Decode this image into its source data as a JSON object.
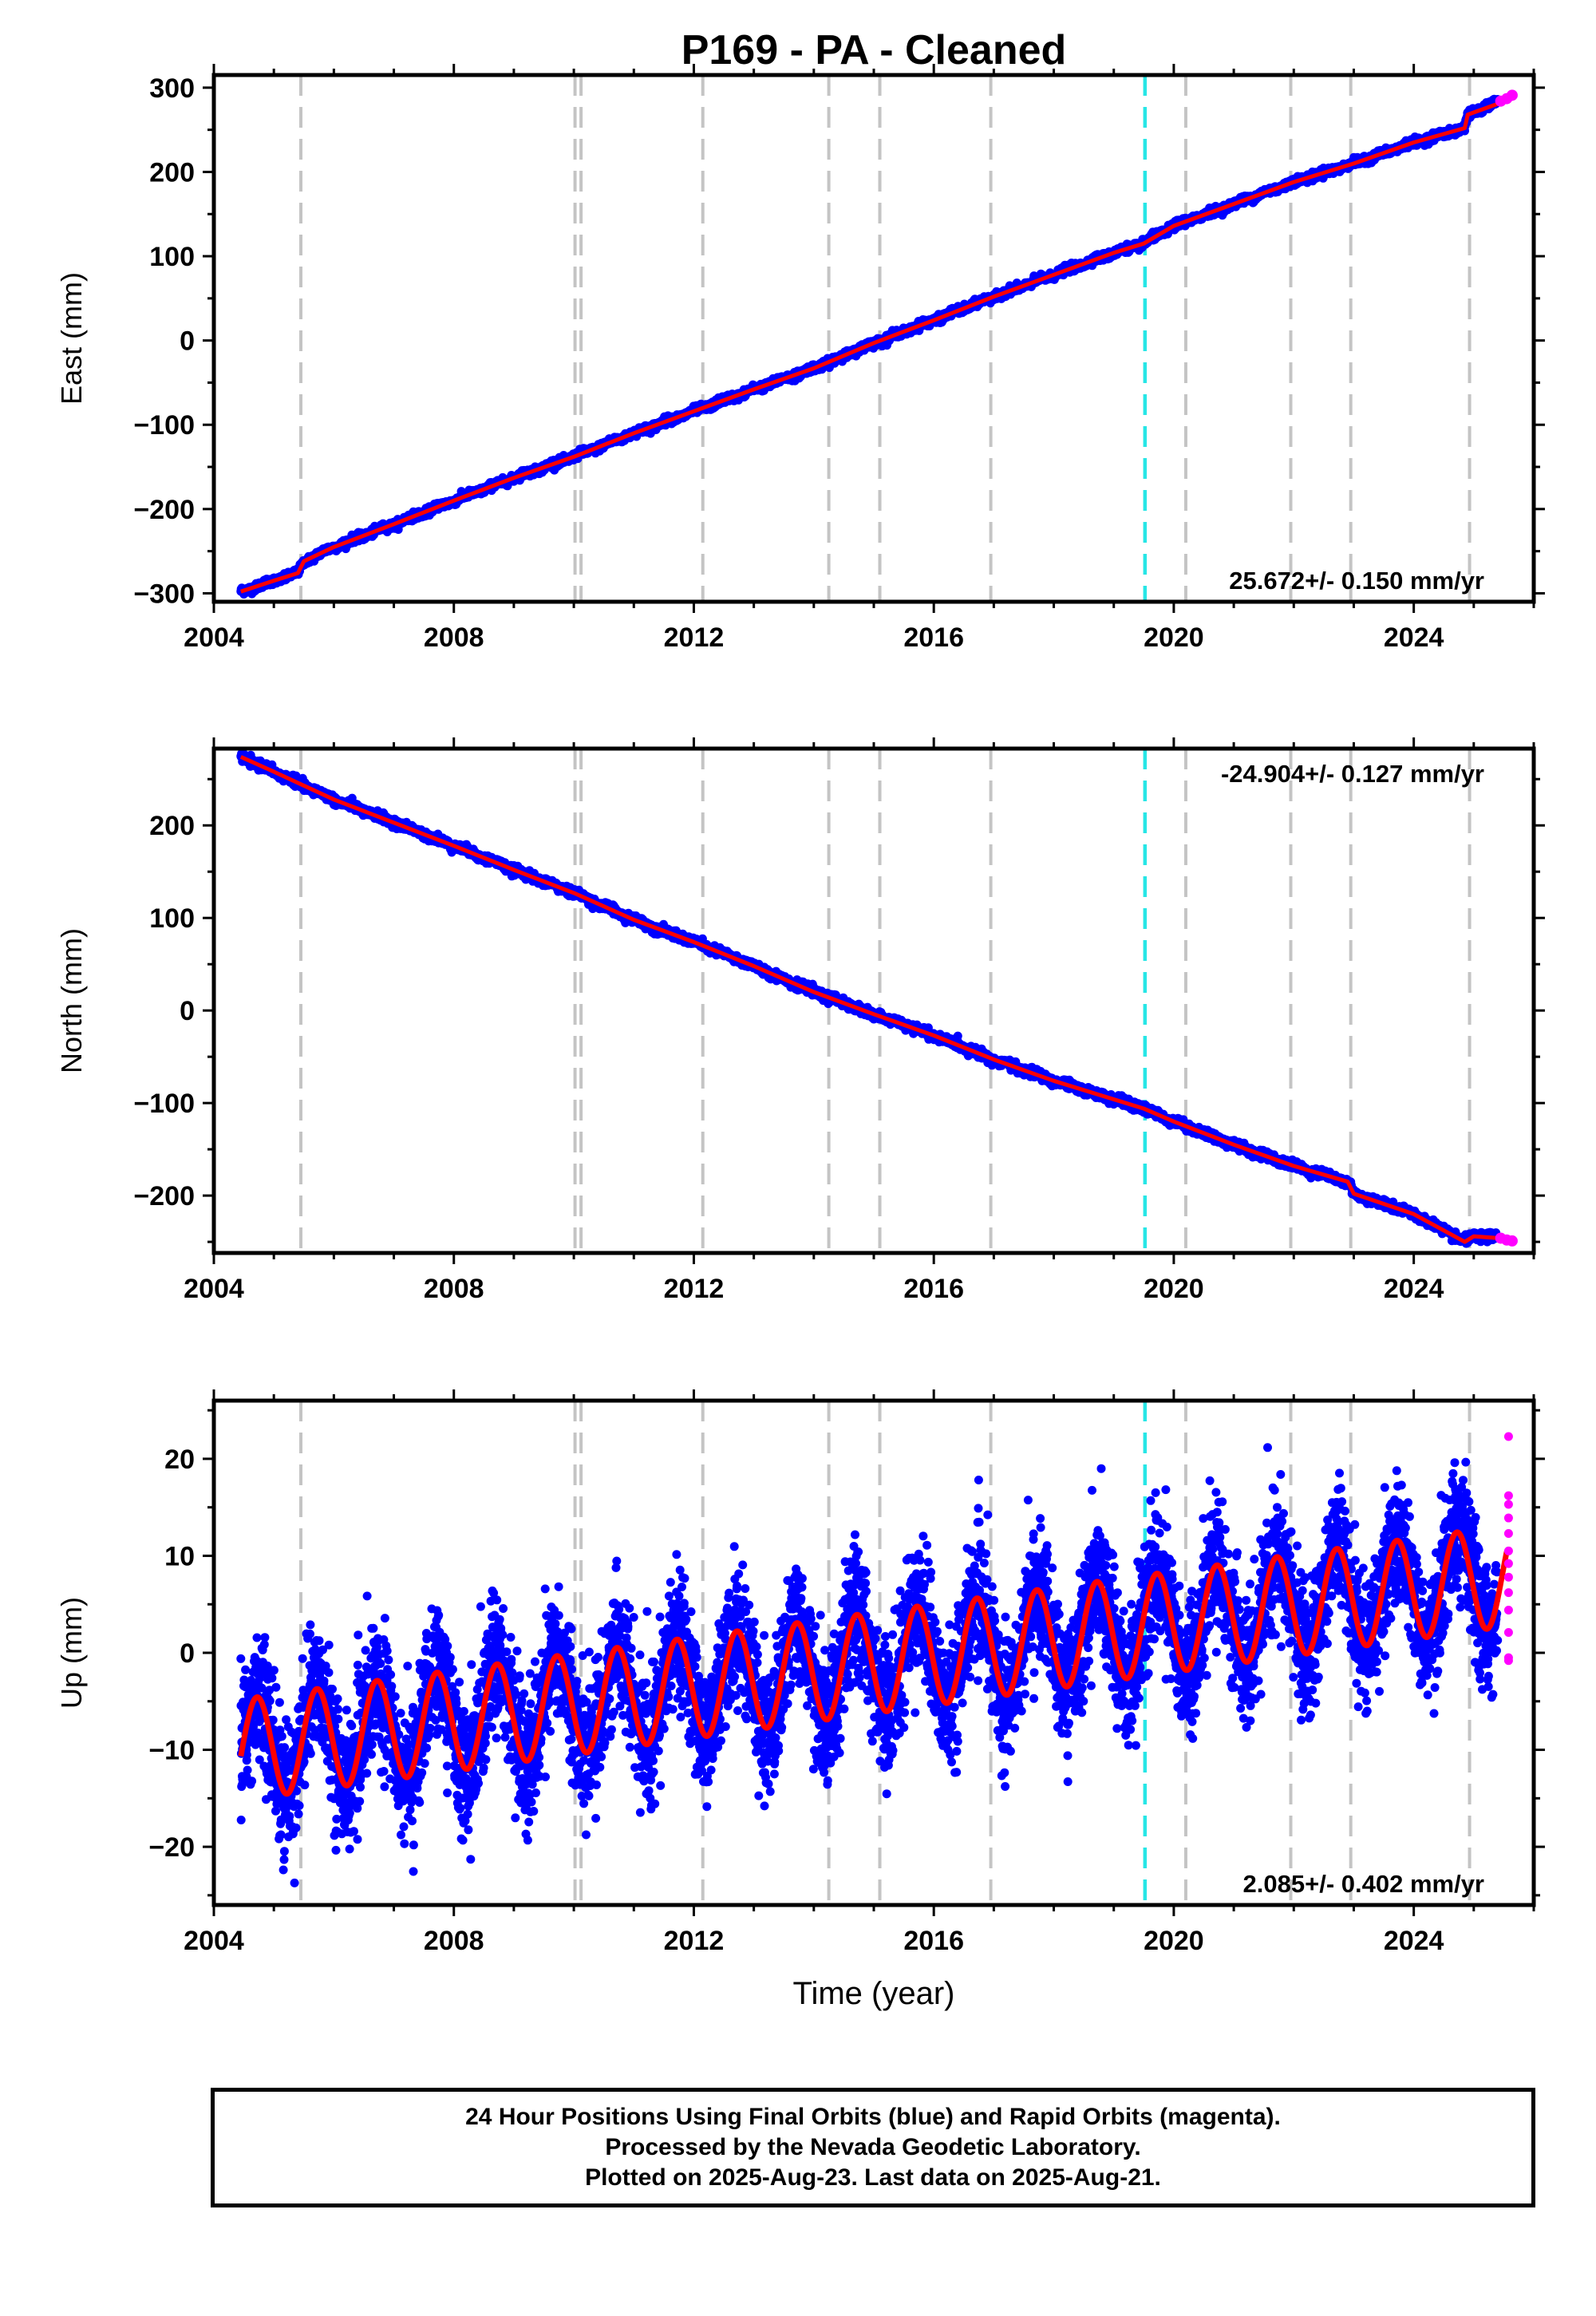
{
  "chart_data": [
    {
      "type": "scatter",
      "title": "P169  - PA - Cleaned",
      "ylabel": "East (mm)",
      "xlabel": "",
      "xlim": [
        2004.0,
        2026.0
      ],
      "ylim": [
        -310,
        315
      ],
      "xticks": [
        2004,
        2008,
        2012,
        2016,
        2020,
        2024
      ],
      "yticks": [
        -300,
        -200,
        -100,
        0,
        100,
        200,
        300
      ],
      "rate_text": "25.672+/- 0.150 mm/yr",
      "rate_position": "bottom-right",
      "grid": false,
      "series": [
        {
          "label": "Final Orbits",
          "color": "#0000ff",
          "x": [
            2004.45,
            2005.0,
            2005.4,
            2005.5,
            2006.0,
            2007.0,
            2008.0,
            2009.0,
            2010.0,
            2011.0,
            2012.0,
            2013.0,
            2014.0,
            2015.0,
            2016.0,
            2017.0,
            2018.0,
            2019.0,
            2019.5,
            2020.0,
            2021.0,
            2022.0,
            2023.0,
            2024.0,
            2024.85,
            2024.9,
            2025.4
          ],
          "y": [
            -298,
            -285,
            -276,
            -262,
            -245,
            -218,
            -190,
            -163,
            -138,
            -110,
            -84,
            -58,
            -33,
            -3,
            24,
            52,
            78,
            104,
            115,
            136,
            162,
            188,
            210,
            235,
            252,
            268,
            283
          ]
        },
        {
          "label": "Rapid Orbits",
          "color": "#ff00ff",
          "x": [
            2025.45,
            2025.55,
            2025.64
          ],
          "y": [
            284,
            287,
            291
          ]
        },
        {
          "label": "Model",
          "color": "#ff0000",
          "x": [
            2004.45,
            2005.0,
            2005.4,
            2005.5,
            2006.0,
            2007.0,
            2008.0,
            2009.0,
            2010.0,
            2011.0,
            2012.0,
            2013.0,
            2014.0,
            2015.0,
            2016.0,
            2017.0,
            2018.0,
            2019.0,
            2019.5,
            2020.0,
            2021.0,
            2022.0,
            2023.0,
            2024.0,
            2024.85,
            2024.9,
            2025.64
          ],
          "y": [
            -298,
            -285,
            -276,
            -262,
            -245,
            -218,
            -190,
            -163,
            -138,
            -110,
            -84,
            -58,
            -33,
            -3,
            24,
            52,
            78,
            104,
            115,
            136,
            162,
            188,
            210,
            235,
            252,
            268,
            287
          ]
        }
      ],
      "vlines_gray": [
        2005.45,
        2010.02,
        2010.12,
        2012.15,
        2014.25,
        2015.1,
        2016.95,
        2020.2,
        2021.95,
        2022.95,
        2024.93
      ],
      "vlines_cyan": [
        2019.52
      ]
    },
    {
      "type": "scatter",
      "ylabel": "North (mm)",
      "xlabel": "",
      "xlim": [
        2004.0,
        2026.0
      ],
      "ylim": [
        -262,
        283
      ],
      "xticks": [
        2004,
        2008,
        2012,
        2016,
        2020,
        2024
      ],
      "yticks": [
        -200,
        -100,
        0,
        100,
        200
      ],
      "rate_text": "-24.904+/- 0.127 mm/yr",
      "rate_position": "top-right",
      "grid": false,
      "series": [
        {
          "label": "Final Orbits",
          "color": "#0000ff",
          "x": [
            2004.45,
            2005.0,
            2006.0,
            2007.0,
            2008.0,
            2009.0,
            2010.0,
            2011.0,
            2012.0,
            2013.0,
            2014.0,
            2015.0,
            2016.0,
            2017.0,
            2018.0,
            2019.0,
            2019.5,
            2020.0,
            2021.0,
            2022.0,
            2022.9,
            2023.0,
            2024.0,
            2024.85,
            2025.0,
            2025.4
          ],
          "y": [
            274,
            258,
            228,
            203,
            178,
            152,
            127,
            98,
            74,
            48,
            20,
            -4,
            -27,
            -53,
            -76,
            -96,
            -106,
            -120,
            -145,
            -168,
            -185,
            -198,
            -220,
            -250,
            -244,
            -245
          ]
        },
        {
          "label": "Rapid Orbits",
          "color": "#ff00ff",
          "x": [
            2025.45,
            2025.55,
            2025.64
          ],
          "y": [
            -246,
            -248,
            -249
          ]
        },
        {
          "label": "Model",
          "color": "#ff0000",
          "x": [
            2004.45,
            2005.0,
            2006.0,
            2007.0,
            2008.0,
            2009.0,
            2010.0,
            2011.0,
            2012.0,
            2013.0,
            2014.0,
            2015.0,
            2016.0,
            2017.0,
            2018.0,
            2019.0,
            2019.5,
            2020.0,
            2021.0,
            2022.0,
            2022.9,
            2023.0,
            2024.0,
            2024.85,
            2025.0,
            2025.64
          ],
          "y": [
            274,
            258,
            228,
            203,
            178,
            152,
            127,
            98,
            74,
            48,
            20,
            -4,
            -27,
            -53,
            -76,
            -96,
            -106,
            -120,
            -145,
            -168,
            -185,
            -198,
            -220,
            -250,
            -244,
            -247
          ]
        }
      ],
      "vlines_gray": [
        2005.45,
        2010.02,
        2010.12,
        2012.15,
        2014.25,
        2015.1,
        2016.95,
        2020.2,
        2021.95,
        2022.95,
        2024.93
      ],
      "vlines_cyan": [
        2019.52
      ]
    },
    {
      "type": "scatter",
      "ylabel": "Up (mm)",
      "xlabel": "Time (year)",
      "xlim": [
        2004.0,
        2026.0
      ],
      "ylim": [
        -26,
        26
      ],
      "xticks": [
        2004,
        2008,
        2012,
        2016,
        2020,
        2024
      ],
      "yticks": [
        -20,
        -10,
        0,
        10,
        20
      ],
      "rate_text": "2.085+/- 0.402 mm/yr",
      "rate_position": "bottom-right",
      "grid": false,
      "seasonal_model": {
        "t0": 2004.45,
        "offset": -10.0,
        "trend_mm_per_yr": 0.85,
        "amplitude": 5.2,
        "peak_fraction": 0.72,
        "scatter_mm": 3.2
      },
      "series": [
        {
          "label": "Final Orbits",
          "color": "#0000ff",
          "x_range": [
            2004.45,
            2025.4
          ]
        },
        {
          "label": "Rapid Orbits",
          "color": "#ff00ff",
          "x": [
            2025.58,
            2025.58,
            2025.58,
            2025.58,
            2025.58,
            2025.58,
            2025.58,
            2025.58,
            2025.58,
            2025.58,
            2025.58,
            2025.58,
            2025.58
          ],
          "y": [
            22.3,
            16.2,
            15.3,
            13.9,
            12.3,
            10.5,
            9.2,
            7.8,
            6.2,
            4.4,
            2.1,
            -0.5,
            -0.8
          ]
        },
        {
          "label": "Model",
          "color": "#ff0000",
          "x_range": [
            2004.45,
            2025.55
          ]
        }
      ],
      "vlines_gray": [
        2005.45,
        2010.02,
        2010.12,
        2012.15,
        2014.25,
        2015.1,
        2016.95,
        2020.2,
        2021.95,
        2022.95,
        2024.93
      ],
      "vlines_cyan": [
        2019.52
      ]
    }
  ],
  "footer": {
    "line1": "24 Hour Positions Using Final Orbits (blue) and Rapid Orbits (magenta).",
    "line2": "Processed by the Nevada Geodetic Laboratory.",
    "line3": "Plotted on 2025-Aug-23. Last data on 2025-Aug-21."
  }
}
